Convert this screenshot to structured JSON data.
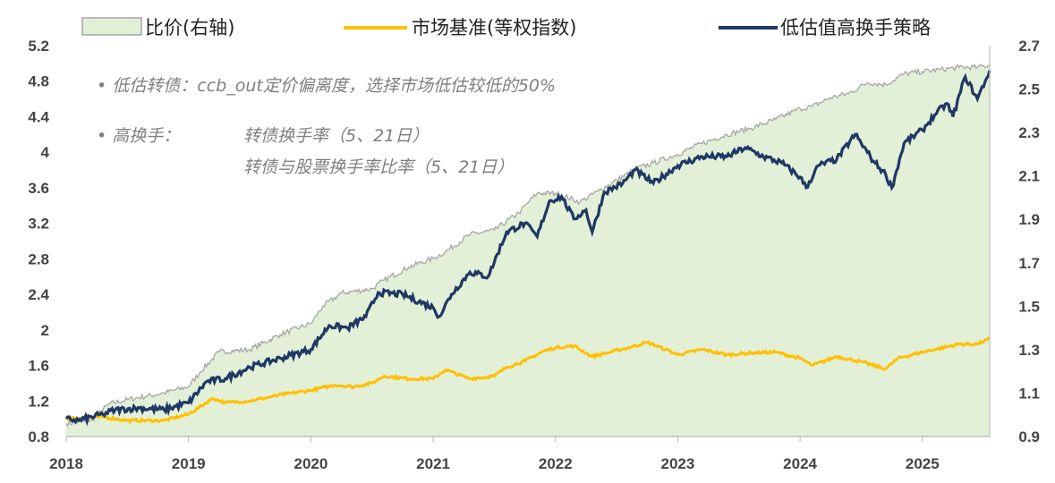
{
  "chart_data": {
    "type": "line",
    "x_ticks": [
      "2018",
      "2019",
      "2020",
      "2021",
      "2022",
      "2023",
      "2024",
      "2025"
    ],
    "x_range": [
      2018.0,
      2025.55
    ],
    "y_left": {
      "range": [
        0.8,
        5.2
      ],
      "ticks": [
        "5.2",
        "4.8",
        "4.4",
        "4",
        "3.6",
        "3.2",
        "2.8",
        "2.4",
        "2",
        "1.6",
        "1.2",
        "0.8"
      ]
    },
    "y_right": {
      "range": [
        0.9,
        2.7
      ],
      "ticks": [
        "2.7",
        "2.5",
        "2.3",
        "2.1",
        "1.9",
        "1.7",
        "1.5",
        "1.3",
        "1.1",
        "0.9"
      ]
    },
    "series": [
      {
        "name": "比价(右轴)",
        "axis": "right",
        "style": "area",
        "color": "#a6a6a6",
        "fill": "#e3f0d8",
        "x": [
          2018.0,
          2018.2,
          2018.35,
          2018.5,
          2018.8,
          2019.0,
          2019.1,
          2019.25,
          2019.5,
          2019.75,
          2020.0,
          2020.1,
          2020.25,
          2020.5,
          2020.6,
          2020.8,
          2021.0,
          2021.1,
          2021.3,
          2021.5,
          2021.7,
          2021.85,
          2022.0,
          2022.2,
          2022.35,
          2022.5,
          2022.65,
          2022.8,
          2023.0,
          2023.2,
          2023.4,
          2023.6,
          2023.8,
          2024.0,
          2024.1,
          2024.25,
          2024.4,
          2024.55,
          2024.7,
          2024.85,
          2025.0,
          2025.15,
          2025.3,
          2025.45,
          2025.55
        ],
        "values": [
          0.96,
          0.97,
          1.05,
          1.07,
          1.1,
          1.13,
          1.2,
          1.29,
          1.3,
          1.37,
          1.42,
          1.5,
          1.56,
          1.58,
          1.62,
          1.68,
          1.72,
          1.75,
          1.83,
          1.85,
          1.93,
          2.02,
          2.02,
          1.98,
          2.03,
          2.08,
          2.13,
          2.16,
          2.2,
          2.25,
          2.29,
          2.32,
          2.36,
          2.41,
          2.42,
          2.46,
          2.48,
          2.53,
          2.52,
          2.57,
          2.58,
          2.59,
          2.6,
          2.6,
          2.61
        ]
      },
      {
        "name": "市场基准(等权指数)",
        "axis": "left",
        "style": "line",
        "color": "#ffc000",
        "x": [
          2018.0,
          2018.3,
          2018.5,
          2018.8,
          2019.0,
          2019.2,
          2019.3,
          2019.5,
          2019.8,
          2020.0,
          2020.2,
          2020.35,
          2020.5,
          2020.6,
          2020.8,
          2021.0,
          2021.1,
          2021.3,
          2021.5,
          2021.6,
          2021.75,
          2021.9,
          2022.0,
          2022.15,
          2022.3,
          2022.45,
          2022.6,
          2022.75,
          2022.9,
          2023.0,
          2023.2,
          2023.4,
          2023.6,
          2023.8,
          2024.0,
          2024.1,
          2024.3,
          2024.5,
          2024.7,
          2024.8,
          2025.0,
          2025.1,
          2025.3,
          2025.45,
          2025.55
        ],
        "values": [
          1.0,
          1.02,
          0.98,
          0.98,
          1.05,
          1.23,
          1.18,
          1.2,
          1.28,
          1.32,
          1.38,
          1.36,
          1.4,
          1.48,
          1.45,
          1.45,
          1.55,
          1.45,
          1.48,
          1.58,
          1.65,
          1.76,
          1.8,
          1.82,
          1.7,
          1.75,
          1.8,
          1.86,
          1.78,
          1.72,
          1.78,
          1.72,
          1.74,
          1.75,
          1.68,
          1.6,
          1.7,
          1.64,
          1.56,
          1.68,
          1.75,
          1.78,
          1.84,
          1.84,
          1.9
        ]
      },
      {
        "name": "低估值高换手策略",
        "axis": "left",
        "style": "line",
        "color": "#1f3864",
        "x": [
          2018.0,
          2018.1,
          2018.3,
          2018.4,
          2018.6,
          2018.8,
          2019.0,
          2019.15,
          2019.3,
          2019.5,
          2019.75,
          2020.0,
          2020.15,
          2020.3,
          2020.45,
          2020.55,
          2020.75,
          2021.0,
          2021.05,
          2021.15,
          2021.3,
          2021.45,
          2021.6,
          2021.75,
          2021.85,
          2021.95,
          2022.05,
          2022.15,
          2022.25,
          2022.3,
          2022.4,
          2022.55,
          2022.65,
          2022.8,
          2023.0,
          2023.2,
          2023.4,
          2023.55,
          2023.7,
          2023.85,
          2024.0,
          2024.05,
          2024.15,
          2024.3,
          2024.45,
          2024.6,
          2024.7,
          2024.75,
          2024.85,
          2025.0,
          2025.1,
          2025.2,
          2025.25,
          2025.35,
          2025.45,
          2025.55
        ],
        "values": [
          1.0,
          0.98,
          1.05,
          1.1,
          1.12,
          1.1,
          1.18,
          1.42,
          1.45,
          1.58,
          1.68,
          1.78,
          2.05,
          2.02,
          2.15,
          2.42,
          2.4,
          2.25,
          2.15,
          2.4,
          2.65,
          2.6,
          3.1,
          3.2,
          3.05,
          3.45,
          3.5,
          3.25,
          3.35,
          3.1,
          3.55,
          3.65,
          3.8,
          3.65,
          3.85,
          3.95,
          3.95,
          4.05,
          3.95,
          3.88,
          3.72,
          3.6,
          3.85,
          3.92,
          4.2,
          3.9,
          3.75,
          3.6,
          4.1,
          4.25,
          4.42,
          4.55,
          4.4,
          4.85,
          4.6,
          4.92
        ]
      }
    ],
    "legend": [
      "比价(右轴)",
      "市场基准(等权指数)",
      "低估值高换手策略"
    ],
    "annotations": [
      "• 低估转债：ccb_out定价偏离度，选择市场低估较低的50%",
      "• 高换手：",
      "转债换手率（5、21日）",
      "转债与股票换手率比率（5、21日）"
    ]
  }
}
